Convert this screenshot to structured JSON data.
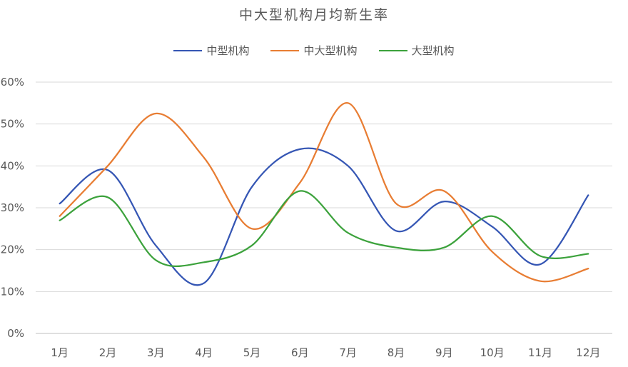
{
  "chart_data": {
    "type": "line",
    "title": "中大型机构月均新生率",
    "xlabel": "",
    "ylabel": "",
    "categories": [
      "1月",
      "2月",
      "3月",
      "4月",
      "5月",
      "6月",
      "7月",
      "8月",
      "9月",
      "10月",
      "11月",
      "12月"
    ],
    "ylim": [
      0,
      60
    ],
    "yticks": [
      "0%",
      "10%",
      "20%",
      "30%",
      "40%",
      "50%",
      "60%"
    ],
    "grid": true,
    "legend_position": "top-center",
    "series": [
      {
        "name": "中型机构",
        "color": "#3556B4",
        "values": [
          31,
          39,
          21,
          12,
          35,
          44,
          40,
          24.5,
          31.5,
          25.5,
          16.5,
          33
        ]
      },
      {
        "name": "中大型机构",
        "color": "#E87D33",
        "values": [
          28,
          40,
          52.5,
          42,
          25,
          36,
          55,
          31,
          34,
          19.5,
          12.5,
          15.5
        ]
      },
      {
        "name": "大型机构",
        "color": "#3CA23C",
        "values": [
          27,
          32.5,
          17.5,
          17,
          21,
          34,
          24,
          20.5,
          20.5,
          28,
          18.5,
          19
        ]
      }
    ]
  }
}
